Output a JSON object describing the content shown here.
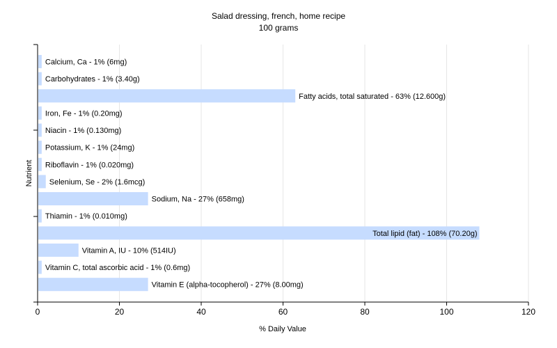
{
  "chart_data": {
    "type": "bar",
    "orientation": "horizontal",
    "title": "Salad dressing, french, home recipe",
    "subtitle": "100 grams",
    "xlabel": "% Daily Value",
    "ylabel": "Nutrient",
    "xlim": [
      0,
      120
    ],
    "xticks": [
      0,
      20,
      40,
      60,
      80,
      100,
      120
    ],
    "grid": true,
    "bar_color": "#c6dcff",
    "categories": [
      "Calcium, Ca",
      "Carbohydrates",
      "Fatty acids, total saturated",
      "Iron, Fe",
      "Niacin",
      "Potassium, K",
      "Riboflavin",
      "Selenium, Se",
      "Sodium, Na",
      "Thiamin",
      "Total lipid (fat)",
      "Vitamin A, IU",
      "Vitamin C, total ascorbic acid",
      "Vitamin E (alpha-tocopherol)"
    ],
    "values": [
      1,
      1,
      63,
      1,
      1,
      1,
      1,
      2,
      27,
      1,
      108,
      10,
      1,
      27
    ],
    "labels": [
      "Calcium, Ca - 1% (6mg)",
      "Carbohydrates - 1% (3.40g)",
      "Fatty acids, total saturated - 63% (12.600g)",
      "Iron, Fe - 1% (0.20mg)",
      "Niacin - 1% (0.130mg)",
      "Potassium, K - 1% (24mg)",
      "Riboflavin - 1% (0.020mg)",
      "Selenium, Se - 2% (1.6mcg)",
      "Sodium, Na - 27% (658mg)",
      "Thiamin - 1% (0.010mg)",
      "Total lipid (fat) - 108% (70.20g)",
      "Vitamin A, IU - 10% (514IU)",
      "Vitamin C, total ascorbic acid - 1% (0.6mg)",
      "Vitamin E (alpha-tocopherol) - 27% (8.00mg)"
    ]
  }
}
